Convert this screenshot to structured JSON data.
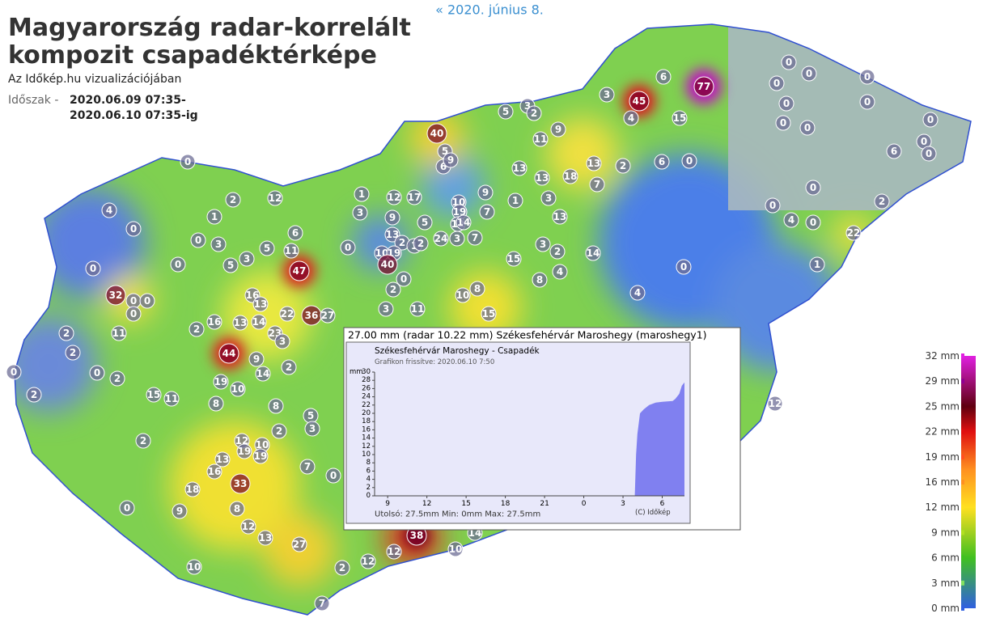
{
  "nav": {
    "prev_link": "« 2020. június 8."
  },
  "header": {
    "title_line1": "Magyarország radar-korrelált",
    "title_line2": "kompozit csapadéktérképe",
    "subtitle": "Az Időkép.hu vizualizációjában",
    "period_label": "Időszak -",
    "period_from": "2020.06.09 07:35-",
    "period_to": "2020.06.10 07:35-ig"
  },
  "map": {
    "stations": [
      77,
      45,
      47,
      44,
      40,
      38,
      36,
      33,
      27,
      27,
      24,
      23,
      22,
      22,
      0,
      2,
      12,
      4,
      0,
      1,
      0,
      3,
      5,
      3,
      5,
      0,
      0,
      6,
      11,
      0,
      1,
      12,
      3,
      9,
      17,
      6,
      5,
      9,
      5,
      3,
      2,
      9,
      11,
      13,
      13,
      18,
      13,
      7,
      13,
      9,
      7,
      10,
      19,
      12,
      14,
      3,
      7,
      13,
      2,
      10,
      19,
      40,
      1,
      2,
      5,
      1,
      3,
      3,
      2,
      15,
      8,
      4,
      14,
      2,
      6,
      15,
      4,
      3,
      0,
      6,
      0,
      0,
      0,
      0,
      0,
      0,
      0,
      0,
      0,
      0,
      0,
      6,
      0,
      0,
      4,
      0,
      2,
      0,
      1,
      4,
      10,
      8,
      15,
      3,
      11,
      2,
      0,
      32,
      0,
      0,
      0,
      11,
      2,
      2,
      0,
      0,
      2,
      2,
      15,
      11,
      8,
      10,
      19,
      2,
      16,
      13,
      14,
      16,
      13,
      3,
      9,
      14,
      2,
      8,
      2,
      5,
      3,
      10,
      12,
      19,
      19,
      13,
      16,
      18,
      8,
      9,
      0,
      2,
      12,
      13,
      10,
      2,
      12,
      12,
      10,
      14,
      7,
      0,
      7,
      12
    ]
  },
  "popup": {
    "header": "27.00 mm (radar 10.22 mm) Székesfehérvár Maroshegy (maroshegy1)",
    "chart_data": {
      "type": "area",
      "title": "Székesfehérvár Maroshegy - Csapadék",
      "subtitle": "Grafikon frissítve: 2020.06.10 7:50",
      "y_unit": "mm",
      "color": "#8080f0",
      "x": [
        8,
        27.9,
        28.0,
        28.1,
        28.3,
        28.6,
        29.0,
        29.5,
        30.0,
        30.8,
        31.0,
        31.3,
        31.5,
        31.7
      ],
      "values": [
        0,
        0,
        10,
        15,
        20,
        21,
        22,
        22.6,
        22.8,
        23,
        23.5,
        24.7,
        26.7,
        27.5
      ],
      "xlim": [
        8,
        31.7
      ],
      "ylim": [
        0,
        30
      ],
      "xticks": [
        9,
        12,
        15,
        18,
        21,
        {
          "value": 24,
          "label": "0"
        },
        {
          "value": 27,
          "label": "3"
        },
        {
          "value": 30,
          "label": "6"
        }
      ],
      "yticks": [
        0,
        2,
        4,
        6,
        8,
        10,
        12,
        14,
        16,
        18,
        20,
        22,
        24,
        26,
        28,
        30
      ],
      "footer": "Utolsó: 27.5mm  Min: 0mm  Max: 27.5mm",
      "credit": "(C) Időkép"
    }
  },
  "legend": {
    "ticks": [
      {
        "value": 32,
        "label": "32 mm"
      },
      {
        "value": 29,
        "label": "29 mm"
      },
      {
        "value": 25,
        "label": "25 mm"
      },
      {
        "value": 22,
        "label": "22 mm"
      },
      {
        "value": 19,
        "label": "19 mm"
      },
      {
        "value": 16,
        "label": "16 mm"
      },
      {
        "value": 12,
        "label": "12 mm"
      },
      {
        "value": 9,
        "label": "9 mm"
      },
      {
        "value": 6,
        "label": "6 mm"
      },
      {
        "value": 3,
        "label": "3 mm"
      },
      {
        "value": 0,
        "label": "0 mm"
      }
    ],
    "colors": [
      "#e020e0",
      "#900090",
      "#600010",
      "#e01010",
      "#ff5020",
      "#ff9020",
      "#ffe020",
      "#b0e020",
      "#40c020",
      "#80e060",
      "#3060e0"
    ]
  }
}
